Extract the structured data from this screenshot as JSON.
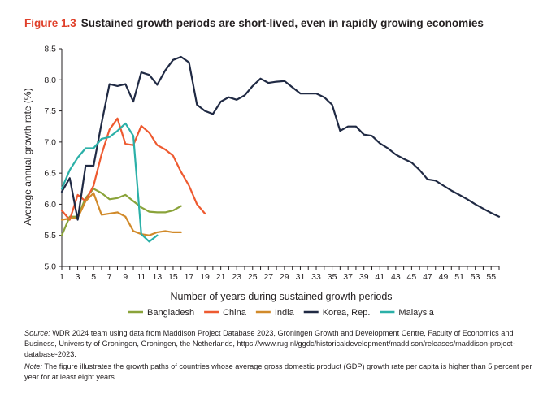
{
  "figure": {
    "number": "Figure 1.3",
    "title": "Sustained growth periods are short-lived, even in rapidly growing economies"
  },
  "colors": {
    "accent": "#e0402a",
    "Bangladesh": "#8aa33a",
    "China": "#ee5a30",
    "India": "#d18a2a",
    "Korea, Rep.": "#202a44",
    "Malaysia": "#2bb0a8"
  },
  "chart_data": {
    "type": "line",
    "xlabel": "Number of years during sustained growth periods",
    "ylabel": "Average annual growth rate (%)",
    "xlim": [
      1,
      56
    ],
    "ylim": [
      5.0,
      8.5
    ],
    "xticks": [
      "1",
      "3",
      "5",
      "7",
      "9",
      "11",
      "13",
      "15",
      "17",
      "19",
      "21",
      "23",
      "25",
      "27",
      "29",
      "31",
      "33",
      "35",
      "37",
      "39",
      "41",
      "43",
      "45",
      "47",
      "49",
      "51",
      "53",
      "55"
    ],
    "yticks": [
      "5.0",
      "5.5",
      "6.0",
      "6.5",
      "7.0",
      "7.5",
      "8.0",
      "8.5"
    ],
    "grid": false,
    "legend": "bottom",
    "series": [
      {
        "name": "Bangladesh",
        "x": [
          1,
          2,
          3,
          4,
          5,
          6,
          7,
          8,
          9,
          10,
          11,
          12,
          13,
          14,
          15,
          16
        ],
        "values": [
          5.5,
          5.8,
          5.8,
          6.1,
          6.25,
          6.18,
          6.08,
          6.1,
          6.15,
          6.05,
          5.95,
          5.88,
          5.87,
          5.87,
          5.9,
          5.97
        ]
      },
      {
        "name": "China",
        "x": [
          1,
          2,
          3,
          4,
          5,
          6,
          7,
          8,
          9,
          10,
          11,
          12,
          13,
          14,
          15,
          16,
          17,
          18,
          19
        ],
        "values": [
          5.9,
          5.75,
          6.15,
          6.05,
          6.3,
          6.8,
          7.2,
          7.38,
          6.97,
          6.95,
          7.26,
          7.15,
          6.95,
          6.88,
          6.78,
          6.52,
          6.3,
          6.0,
          5.85
        ]
      },
      {
        "name": "India",
        "x": [
          1,
          2,
          3,
          4,
          5,
          6,
          7,
          8,
          9,
          10,
          11,
          12,
          13,
          14,
          15,
          16
        ],
        "values": [
          5.75,
          5.77,
          5.78,
          6.05,
          6.18,
          5.83,
          5.85,
          5.87,
          5.8,
          5.57,
          5.52,
          5.5,
          5.55,
          5.57,
          5.55,
          5.55
        ]
      },
      {
        "name": "Korea, Rep.",
        "x": [
          1,
          2,
          3,
          4,
          5,
          6,
          7,
          8,
          9,
          10,
          11,
          12,
          13,
          14,
          15,
          16,
          17,
          18,
          19,
          20,
          21,
          22,
          23,
          24,
          25,
          26,
          27,
          28,
          29,
          30,
          31,
          32,
          33,
          34,
          35,
          36,
          37,
          38,
          39,
          40,
          41,
          42,
          43,
          44,
          45,
          46,
          47,
          48,
          49,
          50,
          51,
          52,
          53,
          54,
          55,
          56
        ],
        "values": [
          6.2,
          6.42,
          5.75,
          6.62,
          6.62,
          7.3,
          7.93,
          7.9,
          7.93,
          7.65,
          8.12,
          8.08,
          7.92,
          8.15,
          8.32,
          8.37,
          8.28,
          7.6,
          7.5,
          7.45,
          7.65,
          7.72,
          7.68,
          7.75,
          7.9,
          8.02,
          7.95,
          7.97,
          7.98,
          7.88,
          7.78,
          7.78,
          7.78,
          7.72,
          7.6,
          7.18,
          7.25,
          7.25,
          7.12,
          7.1,
          6.98,
          6.9,
          6.8,
          6.73,
          6.67,
          6.55,
          6.4,
          6.38,
          6.3,
          6.22,
          6.15,
          6.08,
          6.0,
          5.93,
          5.86,
          5.8
        ]
      },
      {
        "name": "Malaysia",
        "x": [
          1,
          2,
          3,
          4,
          5,
          6,
          7,
          8,
          9,
          10,
          11,
          12,
          13
        ],
        "values": [
          6.25,
          6.55,
          6.75,
          6.9,
          6.9,
          7.05,
          7.08,
          7.18,
          7.3,
          7.1,
          5.52,
          5.4,
          5.5
        ]
      }
    ]
  },
  "notes": {
    "source_label": "Source:",
    "source_text": "WDR 2024 team using data from Maddison Project Database 2023, Groningen Growth and Development Centre, Faculty of Economics and Business, University of Groningen, Groningen, the Netherlands, https://www.rug.nl/ggdc/historicaldevelopment/maddison/releases/maddison-project-database-2023.",
    "note_label": "Note:",
    "note_text": "The figure illustrates the growth paths of countries whose average gross domestic product (GDP) growth rate per capita is higher than 5 percent per year for at least eight years."
  }
}
